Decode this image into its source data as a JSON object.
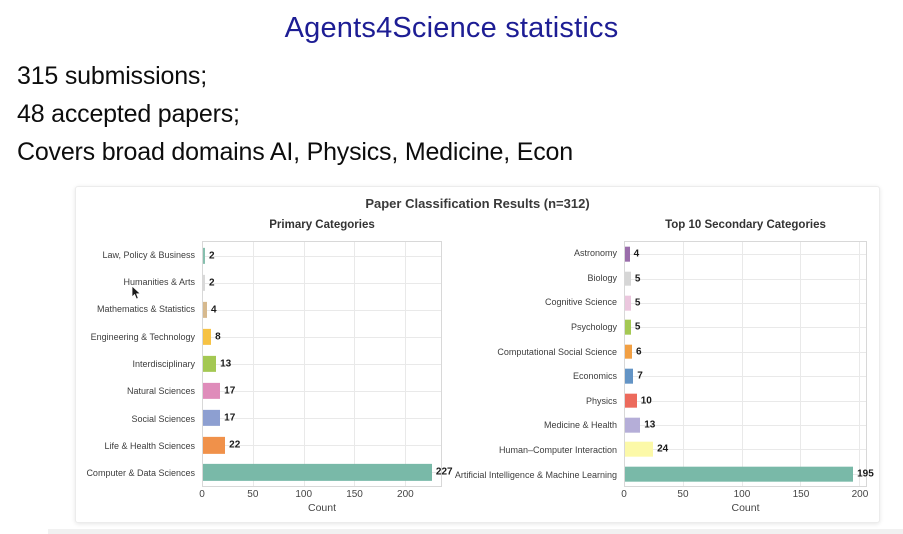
{
  "page": {
    "title": "Agents4Science statistics",
    "title_color": "#1d1d94",
    "lines": [
      "315 submissions;",
      "48 accepted papers;",
      "Covers broad domains AI, Physics, Medicine, Econ"
    ]
  },
  "chart_data": {
    "type": "bar",
    "orientation": "horizontal",
    "title": "Paper Classification Results (n=312)",
    "grid": true,
    "subplots": [
      {
        "title": "Primary Categories",
        "xlabel": "Count",
        "xticks": [
          0,
          50,
          100,
          150,
          200
        ],
        "xlim": [
          0,
          236
        ],
        "categories": [
          "Law, Policy & Business",
          "Humanities & Arts",
          "Mathematics & Statistics",
          "Engineering & Technology",
          "Interdisciplinary",
          "Natural Sciences",
          "Social Sciences",
          "Life & Health Sciences",
          "Computer & Data Sciences"
        ],
        "values": [
          2,
          2,
          4,
          8,
          13,
          17,
          17,
          22,
          227
        ],
        "colors": [
          "#86bfae",
          "#d9d9d9",
          "#d6b98e",
          "#f6c244",
          "#a4c853",
          "#df8cba",
          "#8d9fd1",
          "#f0914a",
          "#79b9a8"
        ]
      },
      {
        "title": "Top 10 Secondary Categories",
        "xlabel": "Count",
        "xticks": [
          0,
          50,
          100,
          150,
          200
        ],
        "xlim": [
          0,
          206
        ],
        "categories": [
          "Astronomy",
          "Biology",
          "Cognitive Science",
          "Psychology",
          "Computational Social Science",
          "Economics",
          "Physics",
          "Medicine & Health",
          "Human–Computer Interaction",
          "Artificial Intelligence & Machine Learning"
        ],
        "values": [
          4,
          5,
          5,
          5,
          6,
          7,
          10,
          13,
          24,
          195
        ],
        "colors": [
          "#9a6dab",
          "#d6d6d6",
          "#ebc7de",
          "#a4c853",
          "#f2a044",
          "#6394c5",
          "#ec6a5c",
          "#b5aed8",
          "#fcf9a8",
          "#79b9a8"
        ]
      }
    ]
  }
}
